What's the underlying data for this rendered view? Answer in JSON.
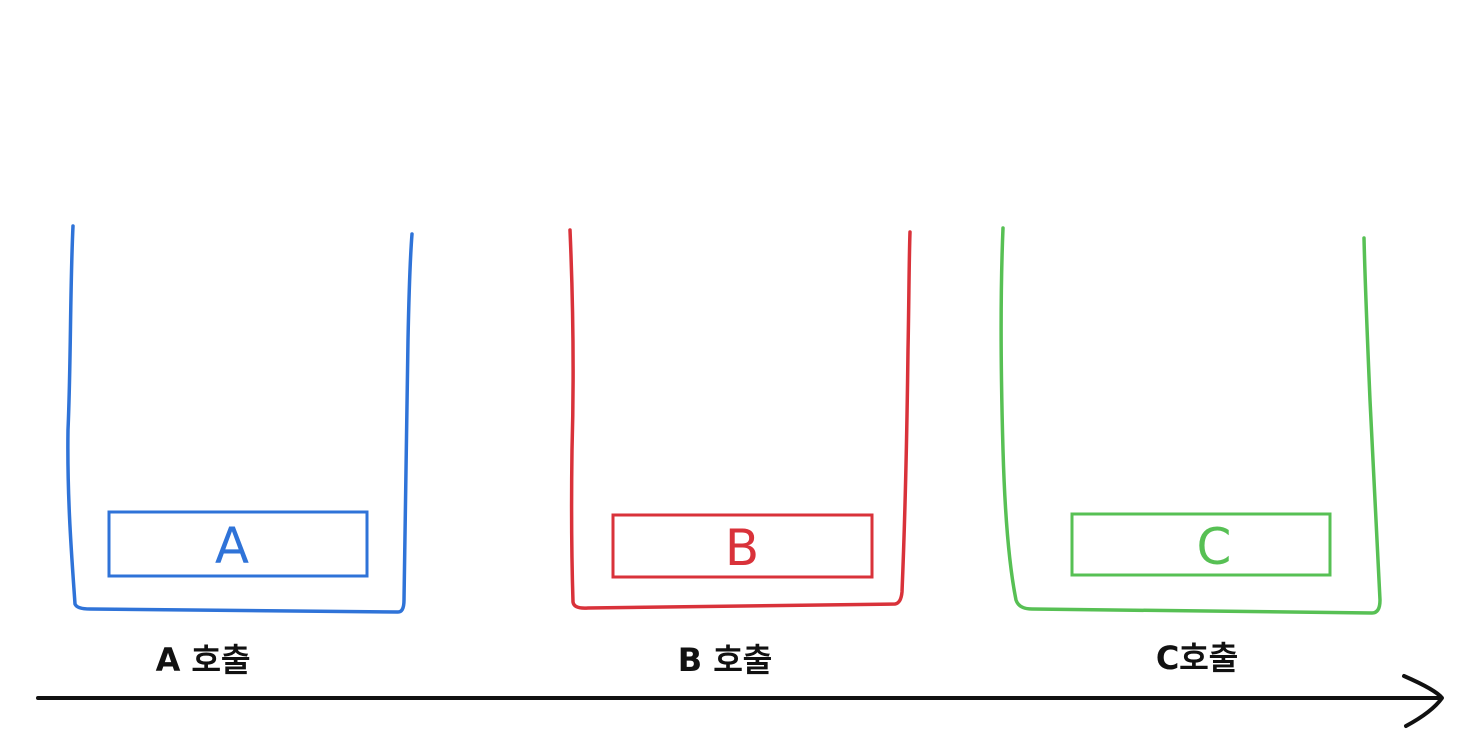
{
  "stacks": [
    {
      "id": "a",
      "frame_label": "A",
      "call_label": "A 호출",
      "color": "#2f73d8"
    },
    {
      "id": "b",
      "frame_label": "B",
      "call_label": "B 호출",
      "color": "#d9323a"
    },
    {
      "id": "c",
      "frame_label": "C",
      "call_label": "C호출",
      "color": "#57c054"
    }
  ],
  "axis": {
    "color": "#111111",
    "arrow_icon": "arrow-right-icon"
  }
}
